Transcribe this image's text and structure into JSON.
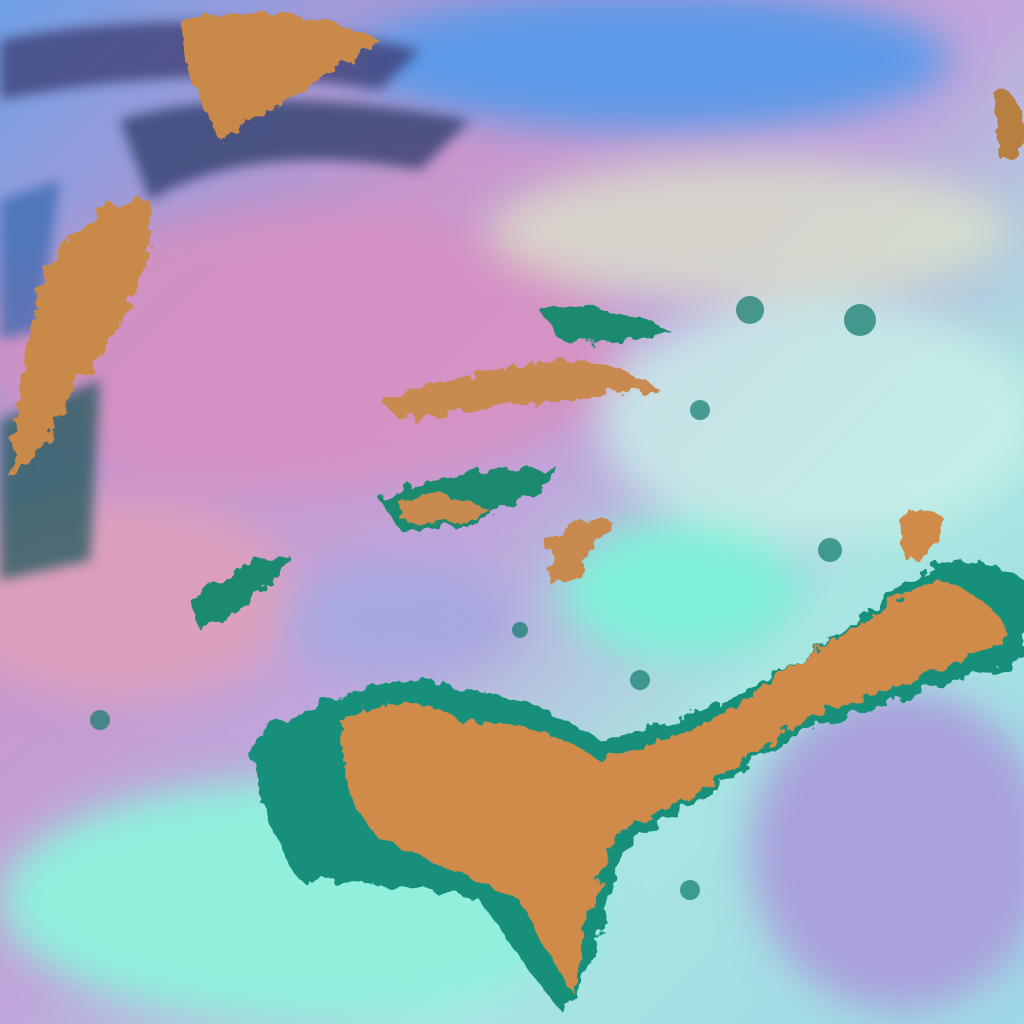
{
  "image": {
    "kind": "false-color satellite imagery",
    "palette": {
      "clear_ground_pink": "#d98fb6",
      "lavender": "#b79ad8",
      "cyan_low_cloud": "#7ff0d8",
      "pale_cloud": "#c8f0ec",
      "blue_region": "#5a9ae8",
      "convective_orange": "#d08a4a",
      "cloud_edge_teal": "#0f8a78",
      "dark_streak": "#3a3060"
    }
  }
}
